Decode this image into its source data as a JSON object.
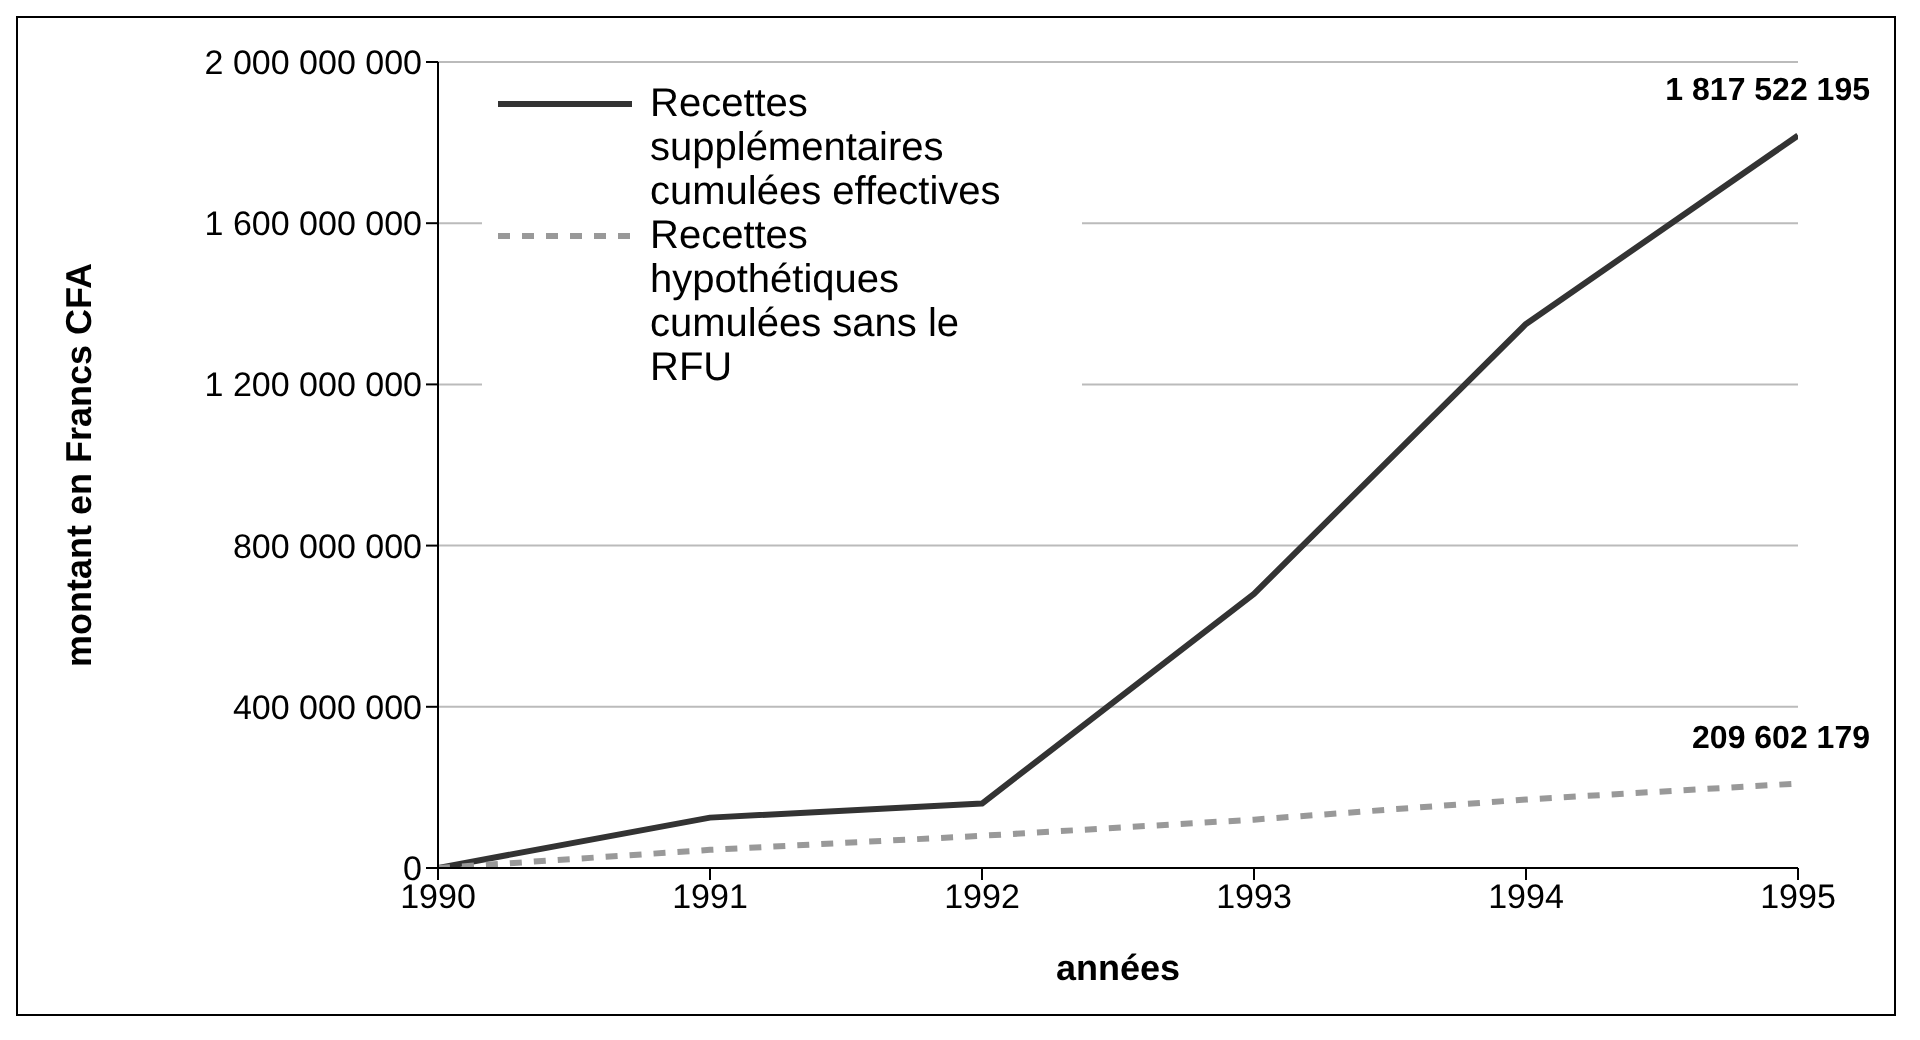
{
  "chart_data": {
    "type": "line",
    "xlabel": "années",
    "ylabel": "montant en Francs CFA",
    "x": [
      1990,
      1991,
      1992,
      1993,
      1994,
      1995
    ],
    "xlim": [
      1990,
      1995
    ],
    "xticks": [
      1990,
      1991,
      1992,
      1993,
      1994,
      1995
    ],
    "ylim": [
      0,
      2000000000
    ],
    "yticks": [
      {
        "value": 0,
        "label": "0"
      },
      {
        "value": 400000000,
        "label": "400 000 000"
      },
      {
        "value": 800000000,
        "label": "800 000 000"
      },
      {
        "value": 1200000000,
        "label": "1 200 000 000"
      },
      {
        "value": 1600000000,
        "label": "1 600 000 000"
      },
      {
        "value": 2000000000,
        "label": "2 000 000 000"
      }
    ],
    "grid": "y",
    "legend": "top left",
    "marker": "none",
    "series": [
      {
        "name": "Recettes supplémentaires cumulées effectives",
        "color": "#333333",
        "line_style": "solid",
        "values": [
          0,
          125000000,
          160000000,
          680000000,
          1350000000,
          1817522195
        ],
        "value_labels": [
          null,
          null,
          null,
          null,
          null,
          "1 817 522 195"
        ]
      },
      {
        "name": "Recettes hypothétiques cumulées sans le RFU",
        "color": "#999999",
        "line_style": "dashed",
        "values": [
          0,
          45000000,
          80000000,
          120000000,
          170000000,
          209602179
        ],
        "value_labels": [
          null,
          null,
          null,
          null,
          null,
          "209 602 179"
        ]
      }
    ]
  }
}
